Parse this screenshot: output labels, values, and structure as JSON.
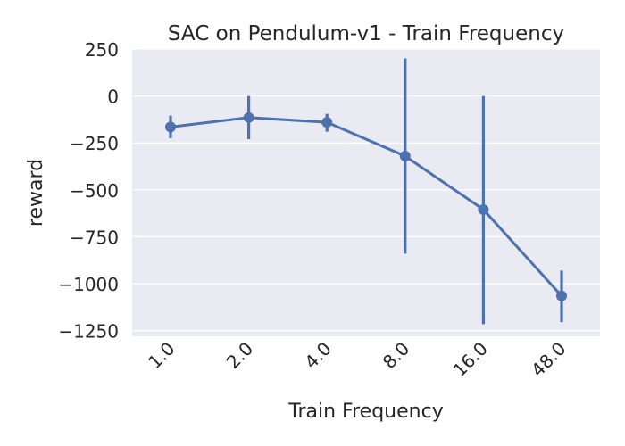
{
  "chart_data": {
    "type": "line",
    "title": "SAC on Pendulum-v1 - Train Frequency",
    "xlabel": "Train Frequency",
    "ylabel": "reward",
    "categories": [
      "1.0",
      "2.0",
      "4.0",
      "8.0",
      "16.0",
      "48.0"
    ],
    "series": [
      {
        "values": [
          -165,
          -115,
          -140,
          -320,
          -605,
          -1065
        ],
        "error_low": [
          -225,
          -230,
          -190,
          -840,
          -1215,
          -1205
        ],
        "error_high": [
          -105,
          0,
          -95,
          200,
          0,
          -930
        ]
      }
    ],
    "ylim": [
      -1280,
      250
    ],
    "yticks": [
      250,
      0,
      -250,
      -500,
      -750,
      -1000,
      -1250
    ],
    "ytick_labels": [
      "250",
      "0",
      "−250",
      "−500",
      "−750",
      "−1000",
      "−1250"
    ],
    "grid": true,
    "legend": "none",
    "colors": {
      "line": "#4c72b0",
      "background": "#eaeaf2",
      "grid": "#ffffff"
    }
  }
}
